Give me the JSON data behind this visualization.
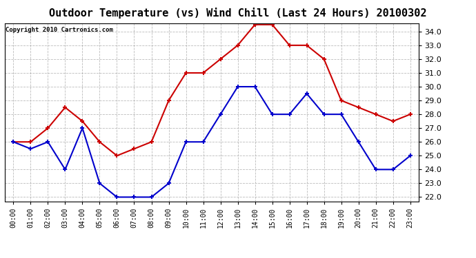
{
  "title": "Outdoor Temperature (vs) Wind Chill (Last 24 Hours) 20100302",
  "copyright": "Copyright 2010 Cartronics.com",
  "x_labels": [
    "00:00",
    "01:00",
    "02:00",
    "03:00",
    "04:00",
    "05:00",
    "06:00",
    "07:00",
    "08:00",
    "09:00",
    "10:00",
    "11:00",
    "12:00",
    "13:00",
    "14:00",
    "15:00",
    "16:00",
    "17:00",
    "18:00",
    "19:00",
    "20:00",
    "21:00",
    "22:00",
    "23:00"
  ],
  "red_data": [
    26.0,
    26.0,
    27.0,
    28.5,
    27.5,
    26.0,
    25.0,
    25.5,
    26.0,
    29.0,
    31.0,
    31.0,
    32.0,
    33.0,
    34.5,
    34.5,
    33.0,
    33.0,
    32.0,
    29.0,
    28.5,
    28.0,
    27.5,
    28.0
  ],
  "blue_data": [
    26.0,
    25.5,
    26.0,
    24.0,
    27.0,
    23.0,
    22.0,
    22.0,
    22.0,
    23.0,
    26.0,
    26.0,
    28.0,
    30.0,
    30.0,
    28.0,
    28.0,
    29.5,
    28.0,
    28.0,
    26.0,
    24.0,
    24.0,
    25.0
  ],
  "red_color": "#cc0000",
  "blue_color": "#0000cc",
  "yticks": [
    22.0,
    23.0,
    24.0,
    25.0,
    26.0,
    27.0,
    28.0,
    29.0,
    30.0,
    31.0,
    32.0,
    33.0,
    34.0
  ],
  "ylim_min": 21.7,
  "ylim_max": 34.6,
  "bg_color": "#ffffff",
  "grid_color": "#aaaaaa",
  "title_fontsize": 11,
  "copyright_fontsize": 6.5,
  "tick_fontsize": 8,
  "xtick_fontsize": 7
}
